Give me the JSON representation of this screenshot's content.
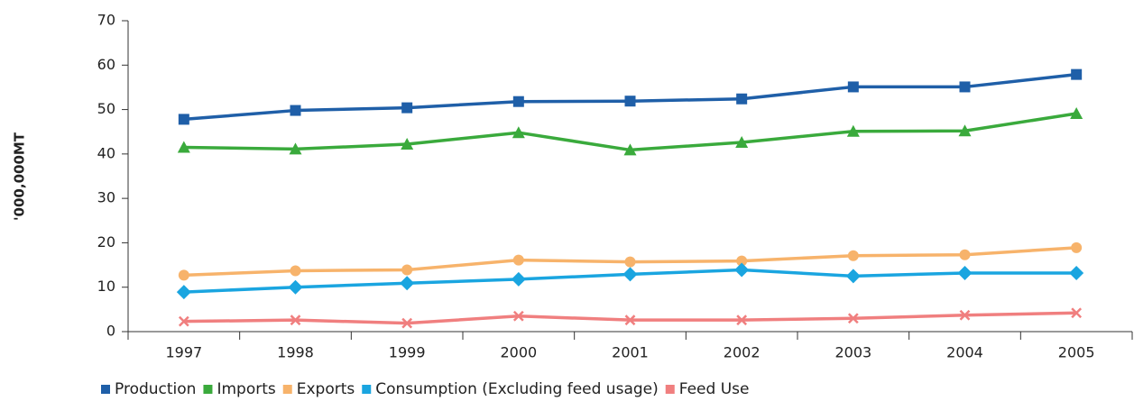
{
  "chart_data": {
    "type": "line",
    "y_label": "'000,000MT",
    "categories": [
      "1997",
      "1998",
      "1999",
      "2000",
      "2001",
      "2002",
      "2003",
      "2004",
      "2005"
    ],
    "series": [
      {
        "name": "Production",
        "color": "#1f5fa8",
        "marker": "square",
        "values": [
          47.8,
          49.8,
          50.4,
          51.8,
          51.9,
          52.4,
          55.1,
          55.1,
          57.9
        ]
      },
      {
        "name": "Imports",
        "color": "#3aaa3c",
        "marker": "triangle",
        "values": [
          41.5,
          41.1,
          42.2,
          44.8,
          40.9,
          42.6,
          45.1,
          45.2,
          49.1
        ]
      },
      {
        "name": "Exports",
        "color": "#f7b36b",
        "marker": "circle",
        "values": [
          12.7,
          13.7,
          13.9,
          16.1,
          15.7,
          15.9,
          17.1,
          17.3,
          18.9
        ]
      },
      {
        "name": "Consumption (Excluding feed usage)",
        "color": "#1aa5e0",
        "marker": "diamond",
        "values": [
          8.9,
          10.0,
          10.9,
          11.8,
          12.9,
          13.9,
          12.5,
          13.2,
          13.2
        ]
      },
      {
        "name": "Feed Use",
        "color": "#f07f7f",
        "marker": "x",
        "values": [
          2.3,
          2.6,
          1.9,
          3.5,
          2.6,
          2.6,
          3.0,
          3.7,
          4.2
        ]
      }
    ],
    "ylim": [
      0,
      70
    ],
    "yticks": [
      0,
      10,
      20,
      30,
      40,
      50,
      60,
      70
    ],
    "grid": false,
    "legend": "bottom"
  }
}
